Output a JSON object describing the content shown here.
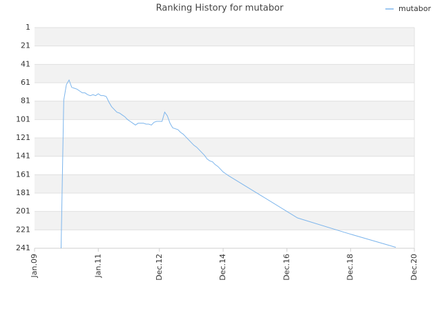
{
  "chart_data": {
    "type": "line",
    "title": "Ranking History for mutabor",
    "x": [
      "2009-11",
      "2009-12",
      "2010-01",
      "2010-02",
      "2010-03",
      "2010-04",
      "2010-05",
      "2010-06",
      "2010-07",
      "2010-08",
      "2010-09",
      "2010-10",
      "2010-11",
      "2010-12",
      "2011-01",
      "2011-02",
      "2011-03",
      "2011-04",
      "2011-05",
      "2011-06",
      "2011-07",
      "2011-08",
      "2011-09",
      "2011-10",
      "2011-11",
      "2011-12",
      "2012-01",
      "2012-02",
      "2012-03",
      "2012-04",
      "2012-05",
      "2012-06",
      "2012-07",
      "2012-08",
      "2012-09",
      "2012-10",
      "2012-11",
      "2012-12",
      "2013-01",
      "2013-02",
      "2013-03",
      "2013-04",
      "2013-05",
      "2013-06",
      "2013-07",
      "2013-08",
      "2013-09",
      "2013-10",
      "2013-11",
      "2013-12",
      "2014-01",
      "2014-02",
      "2014-03",
      "2014-04",
      "2014-05",
      "2014-06",
      "2014-07",
      "2014-08",
      "2014-09",
      "2014-10",
      "2014-11",
      "2014-12",
      "2015-01",
      "2015-02",
      "2016-03",
      "2017-04",
      "2018-10",
      "2020-05"
    ],
    "series": [
      {
        "name": "mutabor",
        "color": "#7cb5ec",
        "values": [
          241,
          80,
          63,
          58,
          66,
          67,
          68,
          70,
          72,
          72,
          74,
          75,
          74,
          75,
          73,
          75,
          75,
          76,
          82,
          87,
          90,
          93,
          94,
          96,
          98,
          101,
          103,
          105,
          107,
          105,
          105,
          105,
          106,
          106,
          107,
          104,
          103,
          103,
          103,
          93,
          97,
          105,
          110,
          111,
          112,
          115,
          117,
          120,
          123,
          126,
          129,
          131,
          134,
          137,
          140,
          144,
          146,
          147,
          150,
          152,
          155,
          158,
          160,
          162,
          185,
          208,
          224,
          240
        ]
      }
    ],
    "xlim": [
      "2009-01",
      "2020-12"
    ],
    "xticks": [
      {
        "value": "2009-01",
        "label": "Jan.09"
      },
      {
        "value": "2011-01",
        "label": "Jan.11"
      },
      {
        "value": "2012-12",
        "label": "Dec.12"
      },
      {
        "value": "2014-12",
        "label": "Dec.14"
      },
      {
        "value": "2016-12",
        "label": "Dec.16"
      },
      {
        "value": "2018-12",
        "label": "Dec.18"
      },
      {
        "value": "2020-12",
        "label": "Dec.20"
      }
    ],
    "ylim": [
      1,
      241
    ],
    "yticks": [
      1,
      21,
      41,
      61,
      81,
      101,
      121,
      141,
      161,
      181,
      201,
      221,
      241
    ],
    "y_reversed": true,
    "grid": true,
    "legend": "top-right"
  }
}
